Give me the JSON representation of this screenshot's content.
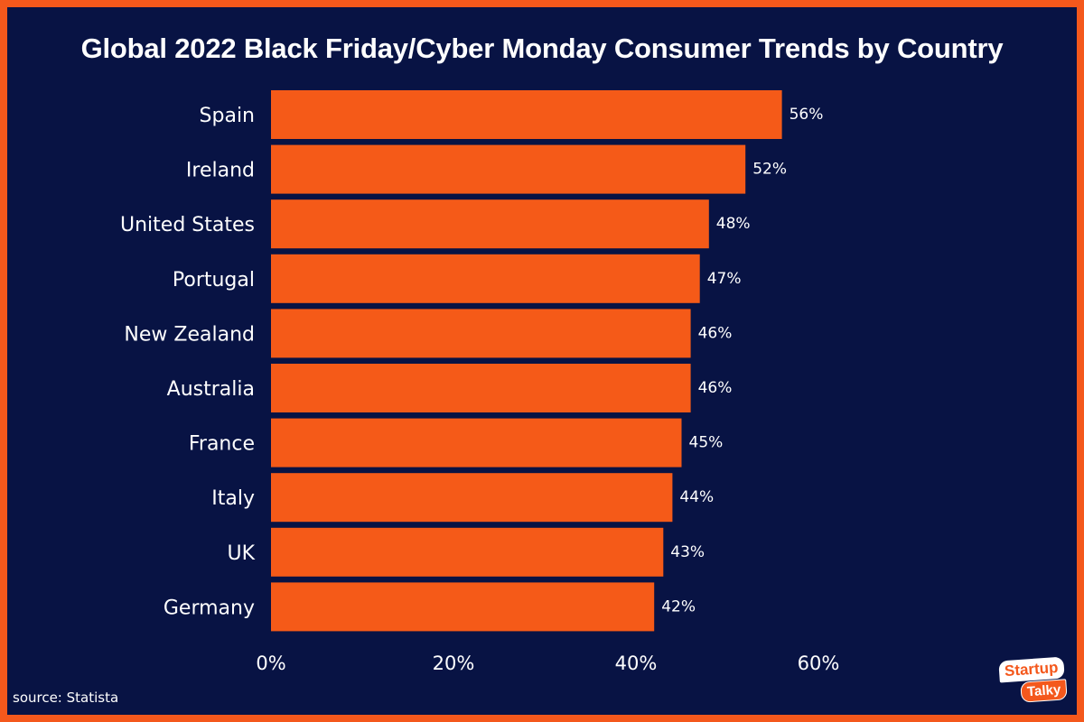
{
  "colors": {
    "background": "#081344",
    "border": "#f4581c",
    "bar": "#f55a18",
    "text": "#ffffff"
  },
  "chart_data": {
    "type": "bar",
    "orientation": "horizontal",
    "title": "Global 2022 Black Friday/Cyber Monday Consumer Trends by Country",
    "categories": [
      "Spain",
      "Ireland",
      "United States",
      "Portugal",
      "New Zealand",
      "Australia",
      "France",
      "Italy",
      "UK",
      "Germany"
    ],
    "values": [
      56,
      52,
      48,
      47,
      46,
      46,
      45,
      44,
      43,
      42
    ],
    "value_labels": [
      "56%",
      "52%",
      "48%",
      "47%",
      "46%",
      "46%",
      "45%",
      "44%",
      "43%",
      "42%"
    ],
    "xticks": [
      0,
      20,
      40,
      60
    ],
    "xtick_labels": [
      "0%",
      "20%",
      "40%",
      "60%"
    ],
    "xlim": [
      0,
      60
    ],
    "xlabel": "",
    "ylabel": "",
    "grid": false
  },
  "footer": {
    "source": "source: Statista"
  },
  "logo": {
    "line1": "Startup",
    "line2": "Talky"
  }
}
